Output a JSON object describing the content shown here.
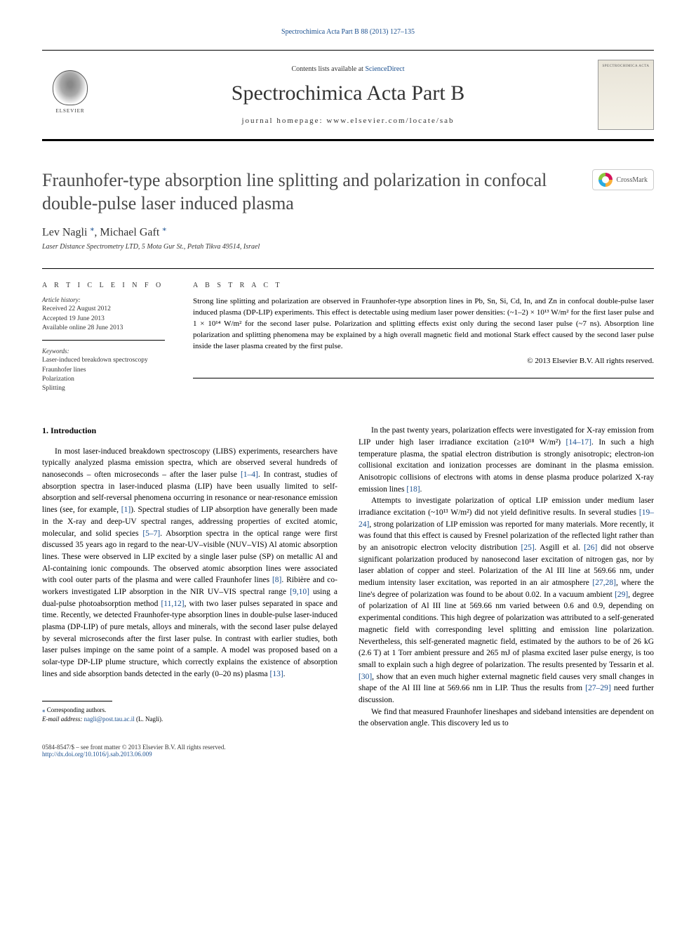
{
  "header": {
    "top_citation": "Spectrochimica Acta Part B 88 (2013) 127–135",
    "contents_prefix": "Contents lists available at ",
    "contents_link": "ScienceDirect",
    "journal_title": "Spectrochimica Acta Part B",
    "homepage_label": "journal homepage: ",
    "homepage_url": "www.elsevier.com/locate/sab",
    "publisher": "ELSEVIER",
    "cover_label": "SPECTROCHIMICA ACTA",
    "crossmark": "CrossMark"
  },
  "article": {
    "title": "Fraunhofer-type absorption line splitting and polarization in confocal double-pulse laser induced plasma",
    "authors_html": "Lev Nagli <span class='marker'>⁎</span>, Michael Gaft <span class='marker'>⁎</span>",
    "affiliation": "Laser Distance Spectrometry LTD, 5 Mota Gur St., Petah Tikva 49514, Israel"
  },
  "info": {
    "article_info_label": "a r t i c l e   i n f o",
    "abstract_label": "a b s t r a c t",
    "history_label": "Article history:",
    "history": {
      "received": "Received 22 August 2012",
      "accepted": "Accepted 19 June 2013",
      "online": "Available online 28 June 2013"
    },
    "keywords_label": "Keywords:",
    "keywords": [
      "Laser-induced breakdown spectroscopy",
      "Fraunhofer lines",
      "Polarization",
      "Splitting"
    ],
    "abstract": "Strong line splitting and polarization are observed in Fraunhofer-type absorption lines in Pb, Sn, Si, Cd, In, and Zn in confocal double-pulse laser induced plasma (DP-LIP) experiments. This effect is detectable using medium laser power densities: (~1–2) × 10¹³ W/m² for the first laser pulse and 1 × 10¹⁴ W/m² for the second laser pulse. Polarization and splitting effects exist only during the second laser pulse (~7 ns). Absorption line polarization and splitting phenomena may be explained by a high overall magnetic field and motional Stark effect caused by the second laser pulse inside the laser plasma created by the first pulse.",
    "copyright": "© 2013 Elsevier B.V. All rights reserved."
  },
  "body": {
    "intro_heading": "1. Introduction",
    "left_paras": [
      "In most laser-induced breakdown spectroscopy (LIBS) experiments, researchers have typically analyzed plasma emission spectra, which are observed several hundreds of nanoseconds – often microseconds – after the laser pulse [1–4]. In contrast, studies of absorption spectra in laser-induced plasma (LIP) have been usually limited to self-absorption and self-reversal phenomena occurring in resonance or near-resonance emission lines (see, for example, [1]). Spectral studies of LIP absorption have generally been made in the X-ray and deep-UV spectral ranges, addressing properties of excited atomic, molecular, and solid species [5–7]. Absorption spectra in the optical range were first discussed 35 years ago in regard to the near-UV–visible (NUV–VIS) Al atomic absorption lines. These were observed in LIP excited by a single laser pulse (SP) on metallic Al and Al-containing ionic compounds. The observed atomic absorption lines were associated with cool outer parts of the plasma and were called Fraunhofer lines [8]. Ribière and co-workers investigated LIP absorption in the NIR UV–VIS spectral range [9,10] using a dual-pulse photoabsorption method [11,12], with two laser pulses separated in space and time. Recently, we detected Fraunhofer-type absorption lines in double-pulse laser-induced plasma (DP-LIP) of pure metals, alloys and minerals, with the second laser pulse delayed by several microseconds after the first laser pulse. In contrast with earlier studies, both laser pulses impinge on the same point of a sample. A model was proposed based on a solar-type DP-LIP plume structure, which correctly explains the existence of absorption lines and side absorption bands detected in the early (0–20 ns) plasma [13]."
    ],
    "right_paras": [
      "In the past twenty years, polarization effects were investigated for X-ray emission from LIP under high laser irradiance excitation (≥10¹⁸ W/m²) [14–17]. In such a high temperature plasma, the spatial electron distribution is strongly anisotropic; electron-ion collisional excitation and ionization processes are dominant in the plasma emission. Anisotropic collisions of electrons with atoms in dense plasma produce polarized X-ray emission lines [18].",
      "Attempts to investigate polarization of optical LIP emission under medium laser irradiance excitation (~10¹³ W/m²) did not yield definitive results. In several studies [19–24], strong polarization of LIP emission was reported for many materials. More recently, it was found that this effect is caused by Fresnel polarization of the reflected light rather than by an anisotropic electron velocity distribution [25]. Asgill et al. [26] did not observe significant polarization produced by nanosecond laser excitation of nitrogen gas, nor by laser ablation of copper and steel. Polarization of the Al III line at 569.66 nm, under medium intensity laser excitation, was reported in an air atmosphere [27,28], where the line's degree of polarization was found to be about 0.02. In a vacuum ambient [29], degree of polarization of Al III line at 569.66 nm varied between 0.6 and 0.9, depending on experimental conditions. This high degree of polarization was attributed to a self-generated magnetic field with corresponding level splitting and emission line polarization. Nevertheless, this self-generated magnetic field, estimated by the authors to be of 26 kG (2.6 T) at 1 Torr ambient pressure and 265 mJ of plasma excited laser pulse energy, is too small to explain such a high degree of polarization. The results presented by Tessarin et al. [30], show that an even much higher external magnetic field causes very small changes in shape of the Al III line at 569.66 nm in LIP. Thus the results from [27–29] need further discussion.",
      "We find that measured Fraunhofer lineshapes and sideband intensities are dependent on the observation angle. This discovery led us to"
    ]
  },
  "footnotes": {
    "corresponding": "⁎ Corresponding authors.",
    "email_label": "E-mail address: ",
    "email": "nagli@post.tau.ac.il",
    "email_suffix": " (L. Nagli).",
    "issn_line": "0584-8547/$ – see front matter © 2013 Elsevier B.V. All rights reserved.",
    "doi": "http://dx.doi.org/10.1016/j.sab.2013.06.009"
  },
  "refs": {
    "r1": "[1–4]",
    "r2": "[1]",
    "r3": "[5–7]",
    "r4": "[8]",
    "r5": "[9,10]",
    "r6": "[11,12]",
    "r7": "[13]",
    "r8": "[14–17]",
    "r9": "[18]",
    "r10": "[19–24]",
    "r11": "[25]",
    "r12": "[26]",
    "r13": "[27,28]",
    "r14": "[29]",
    "r15": "[30]",
    "r16": "[27–29]"
  },
  "colors": {
    "link": "#1a4f8f",
    "title_gray": "#4a4a4a",
    "text": "#000000",
    "background": "#ffffff"
  },
  "typography": {
    "body_fontsize_pt": 9,
    "title_fontsize_pt": 20,
    "journal_fontsize_pt": 24,
    "font_family": "Georgia / Times-like serif"
  }
}
